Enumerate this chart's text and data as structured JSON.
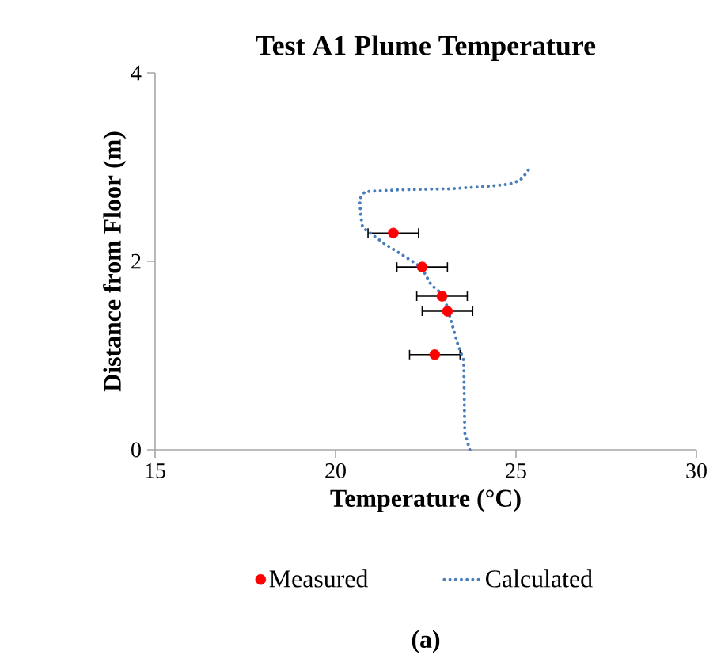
{
  "chart_data": {
    "type": "scatter",
    "title": "Test A1 Plume Temperature",
    "xlabel": "Temperature (°C)",
    "ylabel": "Distance from Floor (m)",
    "xlim": [
      15,
      30
    ],
    "xticks": [
      15,
      20,
      25,
      30
    ],
    "ylim": [
      0,
      4
    ],
    "yticks": [
      0,
      2,
      4
    ],
    "legend": "bottom",
    "grid": false,
    "series": [
      {
        "name": "Measured",
        "color": "#ff0000",
        "marker": "circle",
        "x": [
          21.6,
          22.4,
          22.95,
          23.1,
          22.75
        ],
        "values": [
          2.3,
          1.94,
          1.63,
          1.47,
          1.01
        ],
        "xerrors": [
          0.7,
          0.7,
          0.7,
          0.7,
          0.7
        ]
      },
      {
        "name": "Calculated",
        "type": "line",
        "color": "#4a7ebb",
        "line_style": "dotted",
        "marker": "none",
        "x": [
          23.72,
          23.58,
          23.56,
          23.55,
          23.38,
          23.17,
          23.0,
          22.65,
          22.37,
          21.8,
          21.38,
          20.96,
          20.75,
          20.7,
          20.67,
          20.81,
          21.8,
          23.21,
          24.34,
          24.83,
          25.11,
          25.25,
          25.4
        ],
        "values": [
          0,
          0.18,
          0.74,
          0.95,
          1.13,
          1.41,
          1.64,
          1.75,
          1.94,
          2.08,
          2.18,
          2.3,
          2.36,
          2.48,
          2.66,
          2.74,
          2.76,
          2.77,
          2.8,
          2.82,
          2.86,
          2.92,
          3.0
        ]
      }
    ],
    "annotations": [
      "(a)"
    ]
  }
}
